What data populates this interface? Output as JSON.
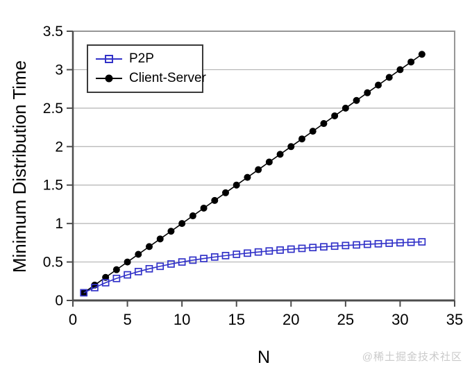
{
  "watermark": {
    "text": "@稀土掘金技术社区",
    "color": "#cacaca"
  },
  "chart_data": {
    "type": "line",
    "title": "",
    "xlabel": "N",
    "ylabel": "Minimum Distribution Time",
    "xlim": [
      0,
      35
    ],
    "ylim": [
      0,
      3.5
    ],
    "grid": "horizontal",
    "legend_position": "top-left",
    "x_ticks": [
      {
        "label": "0",
        "value": 0
      },
      {
        "label": "5",
        "value": 5
      },
      {
        "label": "10",
        "value": 10
      },
      {
        "label": "15",
        "value": 15
      },
      {
        "label": "20",
        "value": 20
      },
      {
        "label": "25",
        "value": 25
      },
      {
        "label": "30",
        "value": 30
      },
      {
        "label": "35",
        "value": 35
      }
    ],
    "y_ticks": [
      {
        "label": "0",
        "value": 0
      },
      {
        "label": "0.5",
        "value": 0.5
      },
      {
        "label": "1",
        "value": 1
      },
      {
        "label": "1.5",
        "value": 1.5
      },
      {
        "label": "2",
        "value": 2
      },
      {
        "label": "2.5",
        "value": 2.5
      },
      {
        "label": "3",
        "value": 3
      },
      {
        "label": "3.5",
        "value": 3.5
      }
    ],
    "x": [
      1,
      2,
      3,
      4,
      5,
      6,
      7,
      8,
      9,
      10,
      11,
      12,
      13,
      14,
      15,
      16,
      17,
      18,
      19,
      20,
      21,
      22,
      23,
      24,
      25,
      26,
      27,
      28,
      29,
      30,
      31,
      32
    ],
    "series": [
      {
        "name": "P2P",
        "color": "#3232c8",
        "marker": "open-square",
        "values": [
          0.1,
          0.167,
          0.231,
          0.286,
          0.333,
          0.375,
          0.412,
          0.444,
          0.474,
          0.5,
          0.524,
          0.545,
          0.565,
          0.583,
          0.6,
          0.615,
          0.63,
          0.643,
          0.655,
          0.667,
          0.677,
          0.688,
          0.697,
          0.706,
          0.714,
          0.722,
          0.73,
          0.737,
          0.744,
          0.75,
          0.756,
          0.762
        ]
      },
      {
        "name": "Client-Server",
        "color": "#000000",
        "marker": "filled-circle",
        "values": [
          0.1,
          0.2,
          0.3,
          0.4,
          0.5,
          0.6,
          0.7,
          0.8,
          0.9,
          1.0,
          1.1,
          1.2,
          1.3,
          1.4,
          1.5,
          1.6,
          1.7,
          1.8,
          1.9,
          2.0,
          2.1,
          2.2,
          2.3,
          2.4,
          2.5,
          2.6,
          2.7,
          2.8,
          2.9,
          3.0,
          3.1,
          3.2
        ]
      }
    ],
    "style": {
      "grid_color": "#b3b3b3",
      "frame_color": "#969696",
      "axis_color": "#4d4d4d",
      "text_color": "#000000"
    }
  }
}
